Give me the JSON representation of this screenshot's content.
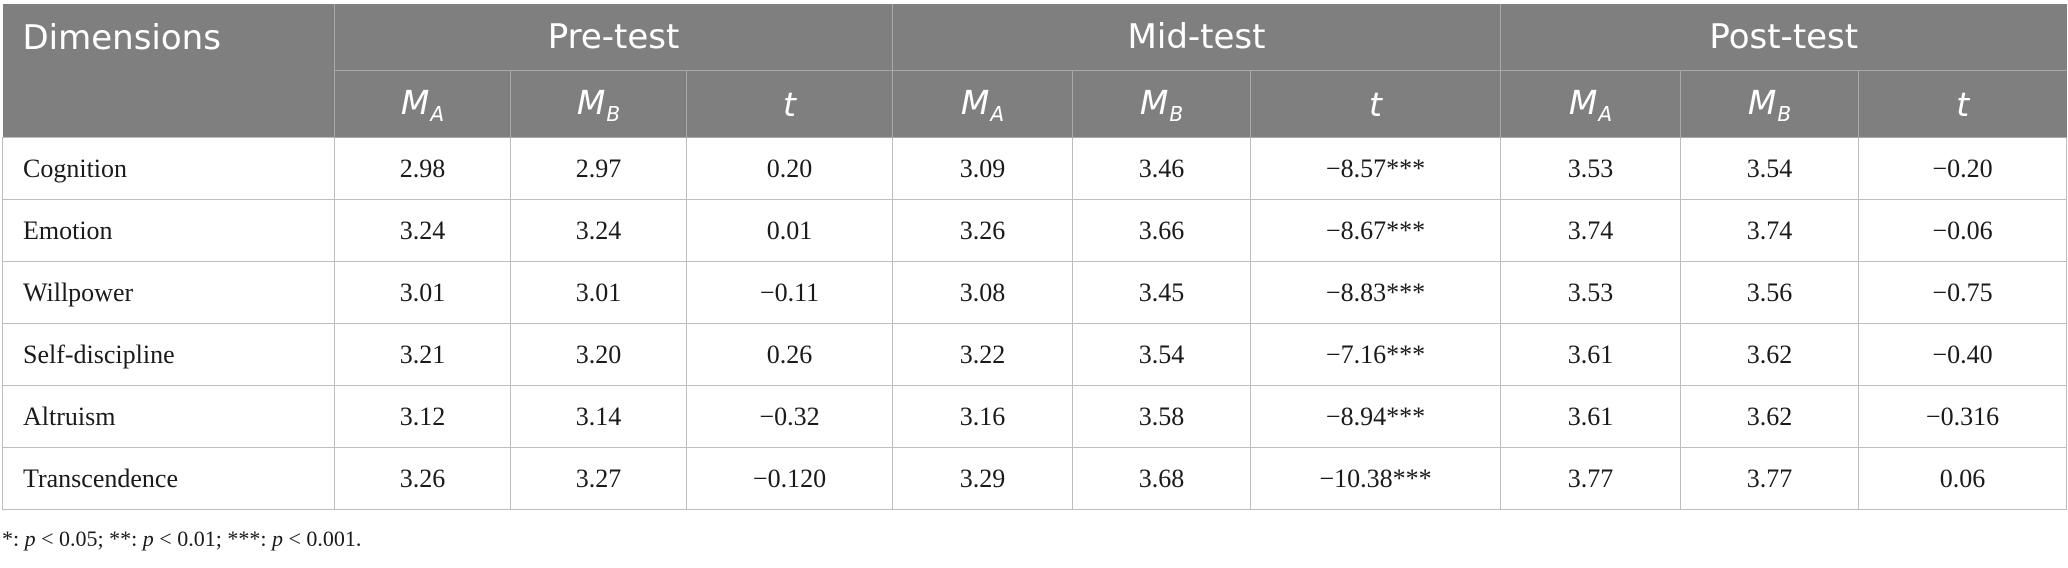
{
  "header": {
    "dimensions_label": "Dimensions",
    "groups": [
      "Pre-test",
      "Mid-test",
      "Post-test"
    ],
    "sub": {
      "ma": "M",
      "ma_sub": "A",
      "mb": "M",
      "mb_sub": "B",
      "t": "t"
    }
  },
  "rows": [
    {
      "label": "Cognition",
      "values": [
        "2.98",
        "2.97",
        "0.20",
        "3.09",
        "3.46",
        "−8.57***",
        "3.53",
        "3.54",
        "−0.20"
      ]
    },
    {
      "label": "Emotion",
      "values": [
        "3.24",
        "3.24",
        "0.01",
        "3.26",
        "3.66",
        "−8.67***",
        "3.74",
        "3.74",
        "−0.06"
      ]
    },
    {
      "label": "Willpower",
      "values": [
        "3.01",
        "3.01",
        "−0.11",
        "3.08",
        "3.45",
        "−8.83***",
        "3.53",
        "3.56",
        "−0.75"
      ]
    },
    {
      "label": "Self-discipline",
      "values": [
        "3.21",
        "3.20",
        "0.26",
        "3.22",
        "3.54",
        "−7.16***",
        "3.61",
        "3.62",
        "−0.40"
      ]
    },
    {
      "label": "Altruism",
      "values": [
        "3.12",
        "3.14",
        "−0.32",
        "3.16",
        "3.58",
        "−8.94***",
        "3.61",
        "3.62",
        "−0.316"
      ]
    },
    {
      "label": "Transcendence",
      "values": [
        "3.26",
        "3.27",
        "−0.120",
        "3.29",
        "3.68",
        "−10.38***",
        "3.77",
        "3.77",
        "0.06"
      ]
    }
  ],
  "footnote": {
    "p1_prefix": "*: ",
    "p1_var": "p",
    "p1_rest": " < 0.05; ",
    "p2_prefix": "**: ",
    "p2_var": "p",
    "p2_rest": " < 0.01; ",
    "p3_prefix": "***: ",
    "p3_var": "p",
    "p3_rest": " < 0.001."
  }
}
